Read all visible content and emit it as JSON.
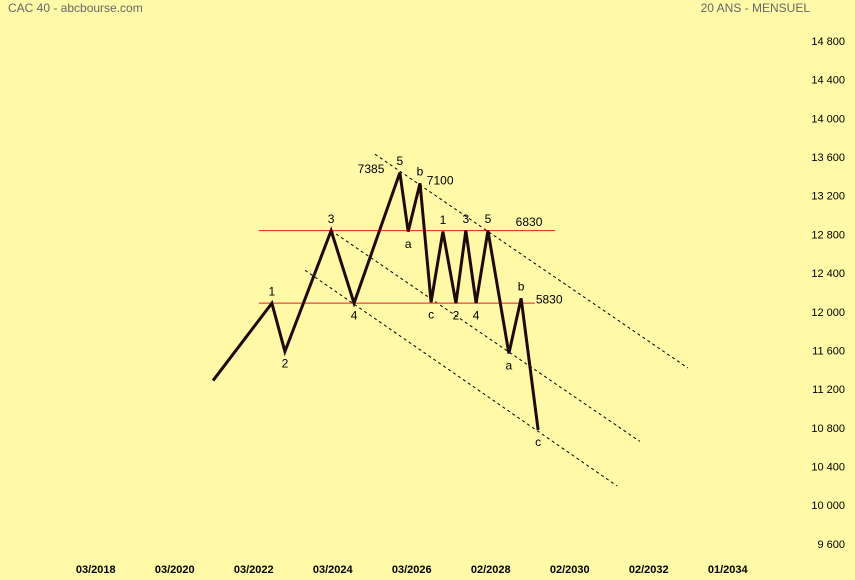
{
  "chart_data": {
    "type": "line",
    "title": "CAC 40 - abcbourse.com",
    "subtitle": "20 ANS - MENSUEL",
    "background": "#fff9a8",
    "xlim": [
      2016,
      2036
    ],
    "ylim": [
      9600,
      14800
    ],
    "xticks": [
      {
        "value": 2018.17,
        "label": "03/2018"
      },
      {
        "value": 2020.17,
        "label": "03/2020"
      },
      {
        "value": 2022.17,
        "label": "03/2022"
      },
      {
        "value": 2024.17,
        "label": "03/2024"
      },
      {
        "value": 2026.17,
        "label": "03/2026"
      },
      {
        "value": 2028.17,
        "label": "02/2028"
      },
      {
        "value": 2030.17,
        "label": "02/2030"
      },
      {
        "value": 2032.17,
        "label": "02/2032"
      },
      {
        "value": 2034.17,
        "label": "01/2034"
      }
    ],
    "yticks": [
      {
        "value": 9600,
        "label": "9 600"
      },
      {
        "value": 10000,
        "label": "10 000"
      },
      {
        "value": 10400,
        "label": "10 400"
      },
      {
        "value": 10800,
        "label": "10 800"
      },
      {
        "value": 11200,
        "label": "11 200"
      },
      {
        "value": 11600,
        "label": "11 600"
      },
      {
        "value": 12000,
        "label": "12 000"
      },
      {
        "value": 12400,
        "label": "12 400"
      },
      {
        "value": 12800,
        "label": "12 800"
      },
      {
        "value": 13200,
        "label": "13 200"
      },
      {
        "value": 13600,
        "label": "13 600"
      },
      {
        "value": 14000,
        "label": "14 000"
      },
      {
        "value": 14400,
        "label": "14 400"
      },
      {
        "value": 14800,
        "label": "14 800"
      }
    ],
    "x": [
      2021.14,
      2022.63,
      2022.96,
      2024.13,
      2024.71,
      2025.87,
      2026.08,
      2026.38,
      2026.66,
      2026.96,
      2027.29,
      2027.54,
      2027.8,
      2028.1,
      2028.63,
      2028.94,
      2029.37
    ],
    "values": [
      11300,
      12100,
      11600,
      12850,
      12100,
      13450,
      12840,
      13340,
      12110,
      12840,
      12100,
      12850,
      12100,
      12850,
      11580,
      12150,
      10790
    ],
    "point_labels": [
      null,
      "1",
      "2",
      "3",
      "4",
      "5",
      "a",
      "b",
      "c",
      "1",
      "2",
      "3",
      "4",
      "5",
      "a",
      "b",
      "c"
    ],
    "color": "#1e0a0a",
    "hlines": [
      {
        "value": 12850,
        "x": [
          2022.3,
          2029.8
        ],
        "color": "#e02020"
      },
      {
        "value": 12100,
        "x": [
          2022.3,
          2029.29
        ],
        "color": "#e02020"
      }
    ],
    "trendlines": [
      {
        "x": [
          2025.24,
          2033.16
        ],
        "y": [
          13640,
          11430
        ]
      },
      {
        "x": [
          2024.13,
          2031.95
        ],
        "y": [
          12850,
          10670
        ]
      },
      {
        "x": [
          2023.47,
          2031.37
        ],
        "y": [
          12440,
          10210
        ]
      }
    ],
    "annotations": [
      {
        "text": "7385",
        "x": 2025.14,
        "y": 13480
      },
      {
        "text": "7100",
        "x": 2026.89,
        "y": 13360
      },
      {
        "text": "6830",
        "x": 2029.14,
        "y": 12930
      },
      {
        "text": "5830",
        "x": 2029.65,
        "y": 12130
      }
    ]
  }
}
